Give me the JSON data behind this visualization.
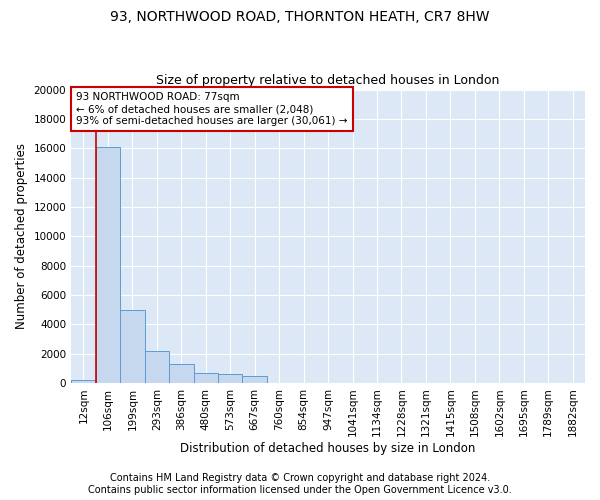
{
  "title1": "93, NORTHWOOD ROAD, THORNTON HEATH, CR7 8HW",
  "title2": "Size of property relative to detached houses in London",
  "xlabel": "Distribution of detached houses by size in London",
  "ylabel": "Number of detached properties",
  "categories": [
    "12sqm",
    "106sqm",
    "199sqm",
    "293sqm",
    "386sqm",
    "480sqm",
    "573sqm",
    "667sqm",
    "760sqm",
    "854sqm",
    "947sqm",
    "1041sqm",
    "1134sqm",
    "1228sqm",
    "1321sqm",
    "1415sqm",
    "1508sqm",
    "1602sqm",
    "1695sqm",
    "1789sqm",
    "1882sqm"
  ],
  "values": [
    200,
    16100,
    5000,
    2200,
    1300,
    700,
    600,
    500,
    0,
    0,
    0,
    0,
    0,
    0,
    0,
    0,
    0,
    0,
    0,
    0,
    0
  ],
  "bar_color": "#c5d8ee",
  "bar_edge_color": "#5b9bd5",
  "vline_x": 0.5,
  "vline_color": "#cc0000",
  "annotation_text": "93 NORTHWOOD ROAD: 77sqm\n← 6% of detached houses are smaller (2,048)\n93% of semi-detached houses are larger (30,061) →",
  "annotation_box_color": "#cc0000",
  "ylim": [
    0,
    20000
  ],
  "yticks": [
    0,
    2000,
    4000,
    6000,
    8000,
    10000,
    12000,
    14000,
    16000,
    18000,
    20000
  ],
  "footer1": "Contains HM Land Registry data © Crown copyright and database right 2024.",
  "footer2": "Contains public sector information licensed under the Open Government Licence v3.0.",
  "plot_bg_color": "#dce8f5",
  "grid_color": "#ffffff",
  "title1_fontsize": 10,
  "title2_fontsize": 9,
  "xlabel_fontsize": 8.5,
  "ylabel_fontsize": 8.5,
  "tick_fontsize": 7.5,
  "footer_fontsize": 7,
  "ann_fontsize": 7.5
}
